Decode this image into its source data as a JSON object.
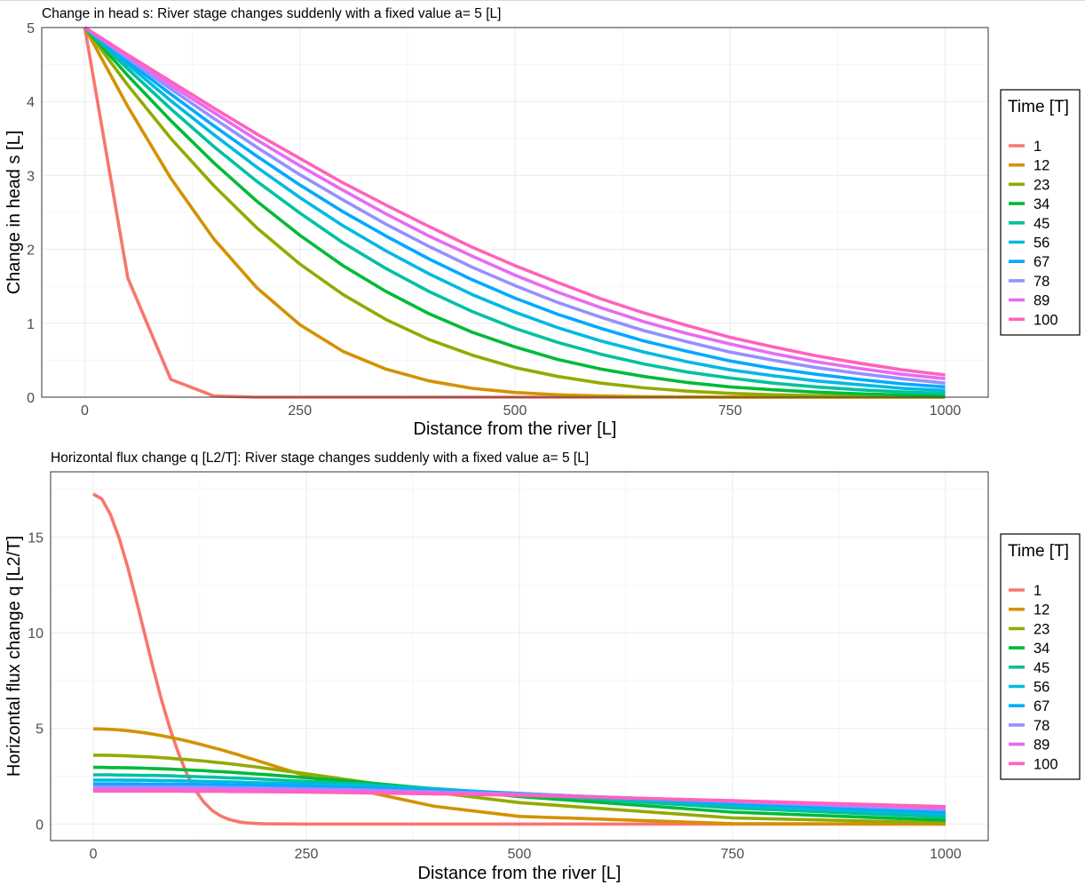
{
  "chart_data": [
    {
      "type": "line",
      "title": "Change in head s: River stage changes suddenly with a fixed value a= 5 [L]",
      "xlabel": "Distance from the river [L]",
      "ylabel": "Change in head s [L]",
      "xlim": [
        0,
        1000
      ],
      "ylim": [
        0,
        5
      ],
      "xticks": [
        0,
        250,
        500,
        750,
        1000
      ],
      "yticks": [
        0,
        1,
        2,
        3,
        4,
        5
      ],
      "grid": true,
      "legend": {
        "title": "Time [T]",
        "placement": "right"
      },
      "x": [
        0,
        50,
        100,
        150,
        200,
        250,
        300,
        350,
        400,
        450,
        500,
        550,
        600,
        650,
        700,
        750,
        800,
        850,
        900,
        950,
        1000
      ],
      "series": [
        {
          "name": "1",
          "color": "#F8766D",
          "values": [
            5.0,
            1.61,
            0.24,
            0.016,
            0.0005,
            0.0,
            0.0,
            0.0,
            0.0,
            0.0,
            0.0,
            0.0,
            0.0,
            0.0,
            0.0,
            0.0,
            0.0,
            0.0,
            0.0,
            0.0,
            0.0
          ]
        },
        {
          "name": "12",
          "color": "#D39200",
          "values": [
            5.0,
            3.93,
            2.96,
            2.14,
            1.48,
            0.98,
            0.62,
            0.38,
            0.22,
            0.12,
            0.064,
            0.032,
            0.016,
            0.0072,
            0.0031,
            0.0013,
            0.0005,
            0.0002,
            0.0001,
            0.0,
            0.0
          ]
        },
        {
          "name": "23",
          "color": "#93AA00",
          "values": [
            5.0,
            4.22,
            3.5,
            2.86,
            2.29,
            1.8,
            1.39,
            1.05,
            0.78,
            0.57,
            0.4,
            0.28,
            0.19,
            0.126,
            0.082,
            0.052,
            0.032,
            0.02,
            0.012,
            0.007,
            0.004
          ]
        },
        {
          "name": "34",
          "color": "#00BA38",
          "values": [
            5.0,
            4.35,
            3.74,
            3.17,
            2.65,
            2.19,
            1.78,
            1.43,
            1.13,
            0.88,
            0.68,
            0.51,
            0.38,
            0.28,
            0.2,
            0.14,
            0.1,
            0.068,
            0.046,
            0.03,
            0.02
          ]
        },
        {
          "name": "45",
          "color": "#00C19F",
          "values": [
            5.0,
            4.44,
            3.9,
            3.39,
            2.92,
            2.49,
            2.09,
            1.74,
            1.43,
            1.16,
            0.93,
            0.74,
            0.58,
            0.45,
            0.34,
            0.26,
            0.19,
            0.14,
            0.1,
            0.072,
            0.051
          ]
        },
        {
          "name": "56",
          "color": "#00B9E3",
          "values": [
            5.0,
            4.5,
            4.01,
            3.55,
            3.11,
            2.7,
            2.32,
            1.98,
            1.67,
            1.39,
            1.15,
            0.94,
            0.76,
            0.61,
            0.48,
            0.37,
            0.29,
            0.22,
            0.17,
            0.12,
            0.091
          ]
        },
        {
          "name": "67",
          "color": "#00A9FF",
          "values": [
            5.0,
            4.54,
            4.1,
            3.67,
            3.26,
            2.87,
            2.51,
            2.18,
            1.87,
            1.59,
            1.34,
            1.12,
            0.93,
            0.76,
            0.62,
            0.49,
            0.39,
            0.31,
            0.24,
            0.18,
            0.14
          ]
        },
        {
          "name": "78",
          "color": "#9590FF",
          "values": [
            5.0,
            4.58,
            4.17,
            3.77,
            3.38,
            3.01,
            2.67,
            2.34,
            2.04,
            1.76,
            1.51,
            1.28,
            1.08,
            0.9,
            0.75,
            0.61,
            0.5,
            0.4,
            0.32,
            0.25,
            0.19
          ]
        },
        {
          "name": "89",
          "color": "#E76BF3",
          "values": [
            5.0,
            4.61,
            4.22,
            3.85,
            3.48,
            3.13,
            2.8,
            2.48,
            2.18,
            1.91,
            1.65,
            1.42,
            1.21,
            1.02,
            0.86,
            0.72,
            0.59,
            0.48,
            0.39,
            0.31,
            0.25
          ]
        },
        {
          "name": "100",
          "color": "#FF62BC",
          "values": [
            5.0,
            4.63,
            4.27,
            3.91,
            3.56,
            3.23,
            2.9,
            2.6,
            2.31,
            2.03,
            1.78,
            1.55,
            1.33,
            1.14,
            0.97,
            0.81,
            0.68,
            0.56,
            0.46,
            0.37,
            0.3
          ]
        }
      ]
    },
    {
      "type": "line",
      "title": "Horizontal flux change q [L2/T]: River stage changes suddenly with a fixed value a= 5 [L]",
      "xlabel": "Distance from the river [L]",
      "ylabel": "Horizontal flux change q [L2/T]",
      "xlim": [
        0,
        1000
      ],
      "ylim": [
        0,
        17.3
      ],
      "xticks": [
        0,
        250,
        500,
        750,
        1000
      ],
      "yticks": [
        0,
        5,
        10,
        15
      ],
      "grid": true,
      "legend": {
        "title": "Time [T]",
        "placement": "right"
      },
      "x": [
        0,
        10,
        20,
        30,
        40,
        50,
        60,
        70,
        80,
        90,
        100,
        110,
        120,
        130,
        140,
        150,
        160,
        170,
        180,
        190,
        200,
        250,
        300,
        400,
        500,
        750,
        1000
      ],
      "series": [
        {
          "name": "1",
          "color": "#F8766D",
          "values": [
            17.25,
            17.0,
            16.2,
            15.0,
            13.5,
            11.8,
            10.0,
            8.2,
            6.5,
            5.0,
            3.7,
            2.6,
            1.75,
            1.13,
            0.69,
            0.41,
            0.23,
            0.12,
            0.06,
            0.03,
            0.015,
            0.0,
            0.0,
            0.0,
            0.0,
            0.0,
            0.0
          ]
        },
        {
          "name": "12",
          "color": "#D39200",
          "values": [
            4.98,
            4.97,
            4.95,
            4.92,
            4.88,
            4.83,
            4.77,
            4.7,
            4.62,
            4.53,
            4.44,
            4.34,
            4.23,
            4.12,
            4.0,
            3.88,
            3.75,
            3.62,
            3.48,
            3.35,
            3.21,
            2.51,
            1.88,
            0.93,
            0.4,
            0.02,
            0.0
          ]
        },
        {
          "name": "23",
          "color": "#93AA00",
          "values": [
            3.6,
            3.6,
            3.59,
            3.58,
            3.56,
            3.54,
            3.52,
            3.5,
            3.47,
            3.44,
            3.4,
            3.37,
            3.33,
            3.29,
            3.24,
            3.2,
            3.15,
            3.1,
            3.04,
            2.99,
            2.93,
            2.63,
            2.31,
            1.66,
            1.12,
            0.32,
            0.06
          ]
        },
        {
          "name": "34",
          "color": "#00BA38",
          "values": [
            2.96,
            2.96,
            2.95,
            2.95,
            2.94,
            2.93,
            2.92,
            2.9,
            2.89,
            2.87,
            2.85,
            2.83,
            2.81,
            2.79,
            2.76,
            2.74,
            2.71,
            2.68,
            2.65,
            2.62,
            2.59,
            2.42,
            2.24,
            1.84,
            1.44,
            0.62,
            0.2
          ]
        },
        {
          "name": "45",
          "color": "#00C19F",
          "values": [
            2.57,
            2.57,
            2.57,
            2.56,
            2.56,
            2.55,
            2.54,
            2.54,
            2.53,
            2.52,
            2.5,
            2.49,
            2.48,
            2.46,
            2.45,
            2.43,
            2.41,
            2.4,
            2.38,
            2.36,
            2.34,
            2.23,
            2.12,
            1.85,
            1.56,
            0.84,
            0.36
          ]
        },
        {
          "name": "56",
          "color": "#00B9E3",
          "values": [
            2.3,
            2.3,
            2.3,
            2.3,
            2.29,
            2.29,
            2.29,
            2.28,
            2.27,
            2.27,
            2.26,
            2.25,
            2.24,
            2.23,
            2.22,
            2.21,
            2.2,
            2.19,
            2.17,
            2.16,
            2.15,
            2.08,
            2.0,
            1.81,
            1.6,
            1.0,
            0.51
          ]
        },
        {
          "name": "67",
          "color": "#00A9FF",
          "values": [
            2.1,
            2.1,
            2.1,
            2.1,
            2.1,
            2.1,
            2.09,
            2.09,
            2.09,
            2.08,
            2.08,
            2.07,
            2.07,
            2.06,
            2.05,
            2.05,
            2.04,
            2.03,
            2.02,
            2.01,
            2.0,
            1.95,
            1.89,
            1.75,
            1.6,
            1.1,
            0.64
          ]
        },
        {
          "name": "78",
          "color": "#9590FF",
          "values": [
            1.95,
            1.95,
            1.95,
            1.95,
            1.95,
            1.95,
            1.94,
            1.94,
            1.94,
            1.94,
            1.93,
            1.93,
            1.93,
            1.92,
            1.92,
            1.91,
            1.91,
            1.9,
            1.9,
            1.89,
            1.88,
            1.84,
            1.8,
            1.69,
            1.57,
            1.17,
            0.75
          ]
        },
        {
          "name": "89",
          "color": "#E76BF3",
          "values": [
            1.83,
            1.83,
            1.83,
            1.83,
            1.83,
            1.82,
            1.82,
            1.82,
            1.82,
            1.82,
            1.82,
            1.81,
            1.81,
            1.81,
            1.81,
            1.8,
            1.8,
            1.79,
            1.79,
            1.78,
            1.78,
            1.75,
            1.72,
            1.63,
            1.54,
            1.2,
            0.84
          ]
        },
        {
          "name": "100",
          "color": "#FF62BC",
          "values": [
            1.72,
            1.72,
            1.72,
            1.72,
            1.72,
            1.72,
            1.72,
            1.72,
            1.72,
            1.72,
            1.72,
            1.71,
            1.71,
            1.71,
            1.71,
            1.71,
            1.7,
            1.7,
            1.7,
            1.69,
            1.69,
            1.67,
            1.64,
            1.58,
            1.5,
            1.22,
            0.91
          ]
        }
      ]
    }
  ]
}
